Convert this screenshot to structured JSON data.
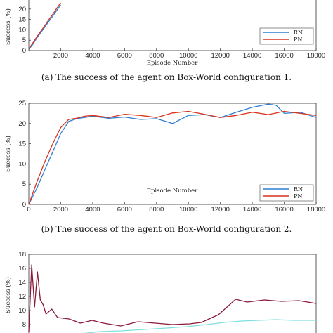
{
  "chart_data": [
    {
      "type": "line",
      "xlabel": "Episode Number",
      "ylabel": "Success (%)",
      "xticks": [
        "2000",
        "4000",
        "6000",
        "8000",
        "10000",
        "12000",
        "14000",
        "16000",
        "18000"
      ],
      "yticks": [
        "0",
        "5",
        "10",
        "15",
        "20"
      ],
      "xlim": [
        0,
        18000
      ],
      "ylim": [
        0,
        25
      ],
      "legend": "bottom-right",
      "series": [
        {
          "name": "RN",
          "color": "#2f7fd4",
          "x": [
            0,
            250,
            500,
            750,
            1000,
            1250,
            1500,
            1750,
            2000
          ],
          "y": [
            0.5,
            3.0,
            6.0,
            8.6,
            11.3,
            14.0,
            16.6,
            19.3,
            22.0
          ]
        },
        {
          "name": "PN",
          "color": "#d9331f",
          "x": [
            0,
            250,
            500,
            750,
            1000,
            1250,
            1500,
            1750,
            2000
          ],
          "y": [
            0.8,
            3.6,
            6.6,
            9.3,
            12.0,
            14.8,
            17.5,
            20.3,
            23.0
          ]
        }
      ]
    },
    {
      "type": "line",
      "xlabel": "Episode Number",
      "ylabel": "Success (%)",
      "xticks": [
        "0",
        "2000",
        "4000",
        "6000",
        "8000",
        "10000",
        "12000",
        "14000",
        "16000",
        "18000"
      ],
      "yticks": [
        "0",
        "5",
        "10",
        "15",
        "20",
        "25"
      ],
      "xlim": [
        0,
        18000
      ],
      "ylim": [
        0,
        25
      ],
      "legend": "bottom-right",
      "series": [
        {
          "name": "RN",
          "color": "#2f7fd4",
          "x": [
            0,
            500,
            1000,
            1500,
            2000,
            2500,
            3000,
            3500,
            4000,
            5000,
            6000,
            7000,
            8000,
            9000,
            10000,
            11000,
            12000,
            13000,
            14000,
            15000,
            15500,
            16000,
            17000,
            18000
          ],
          "y": [
            0,
            4.0,
            8.5,
            13.0,
            17.5,
            20.5,
            21.2,
            21.5,
            21.8,
            21.3,
            21.6,
            21.0,
            21.2,
            20.0,
            22.0,
            22.2,
            21.5,
            22.8,
            24.0,
            24.8,
            24.5,
            22.5,
            22.8,
            21.5
          ]
        },
        {
          "name": "PN",
          "color": "#d9331f",
          "x": [
            0,
            500,
            1000,
            1500,
            2000,
            2500,
            3000,
            3500,
            4000,
            5000,
            6000,
            7000,
            8000,
            9000,
            10000,
            11000,
            12000,
            13000,
            14000,
            15000,
            16000,
            17000,
            18000
          ],
          "y": [
            0,
            5.5,
            10.5,
            15.0,
            19.0,
            21.0,
            21.3,
            21.8,
            22.0,
            21.5,
            22.3,
            22.0,
            21.5,
            22.6,
            23.0,
            22.3,
            21.5,
            22.0,
            22.8,
            22.2,
            23.0,
            22.5,
            22.0
          ]
        }
      ]
    },
    {
      "type": "line",
      "xlabel": "",
      "ylabel": "Success (%)",
      "yticks": [
        "8",
        "10",
        "12",
        "14",
        "16",
        "18"
      ],
      "ylim": [
        6,
        18
      ],
      "xlim": [
        0,
        100
      ],
      "series": [
        {
          "color": "#8b1a3a",
          "x": [
            0,
            1,
            2,
            3,
            4,
            5,
            6,
            8,
            10,
            14,
            18,
            22,
            26,
            32,
            38,
            44,
            50,
            56,
            60,
            66,
            72,
            76,
            82,
            88,
            94,
            100
          ],
          "y": [
            7.0,
            16.5,
            10.5,
            15.5,
            11.5,
            10.8,
            9.5,
            10.2,
            9.0,
            8.8,
            8.2,
            8.6,
            8.2,
            7.8,
            8.4,
            8.2,
            8.0,
            8.1,
            8.3,
            9.4,
            11.6,
            11.2,
            11.5,
            11.3,
            11.4,
            11.0
          ]
        },
        {
          "color": "#7fdfdf",
          "x": [
            0,
            1,
            2,
            3,
            5,
            8,
            12,
            18,
            25,
            32,
            40,
            48,
            55,
            62,
            68,
            74,
            80,
            86,
            92,
            100
          ],
          "y": [
            5.0,
            6.5,
            5.5,
            6.2,
            5.8,
            6.3,
            6.5,
            6.7,
            7.0,
            7.1,
            7.3,
            7.5,
            7.7,
            8.0,
            8.3,
            8.5,
            8.6,
            8.7,
            8.6,
            8.6
          ]
        }
      ]
    }
  ],
  "captions": {
    "a": "(a) The success of the agent on Box-World configuration 1.",
    "b": "(b) The success of the agent on Box-World configuration 2."
  }
}
